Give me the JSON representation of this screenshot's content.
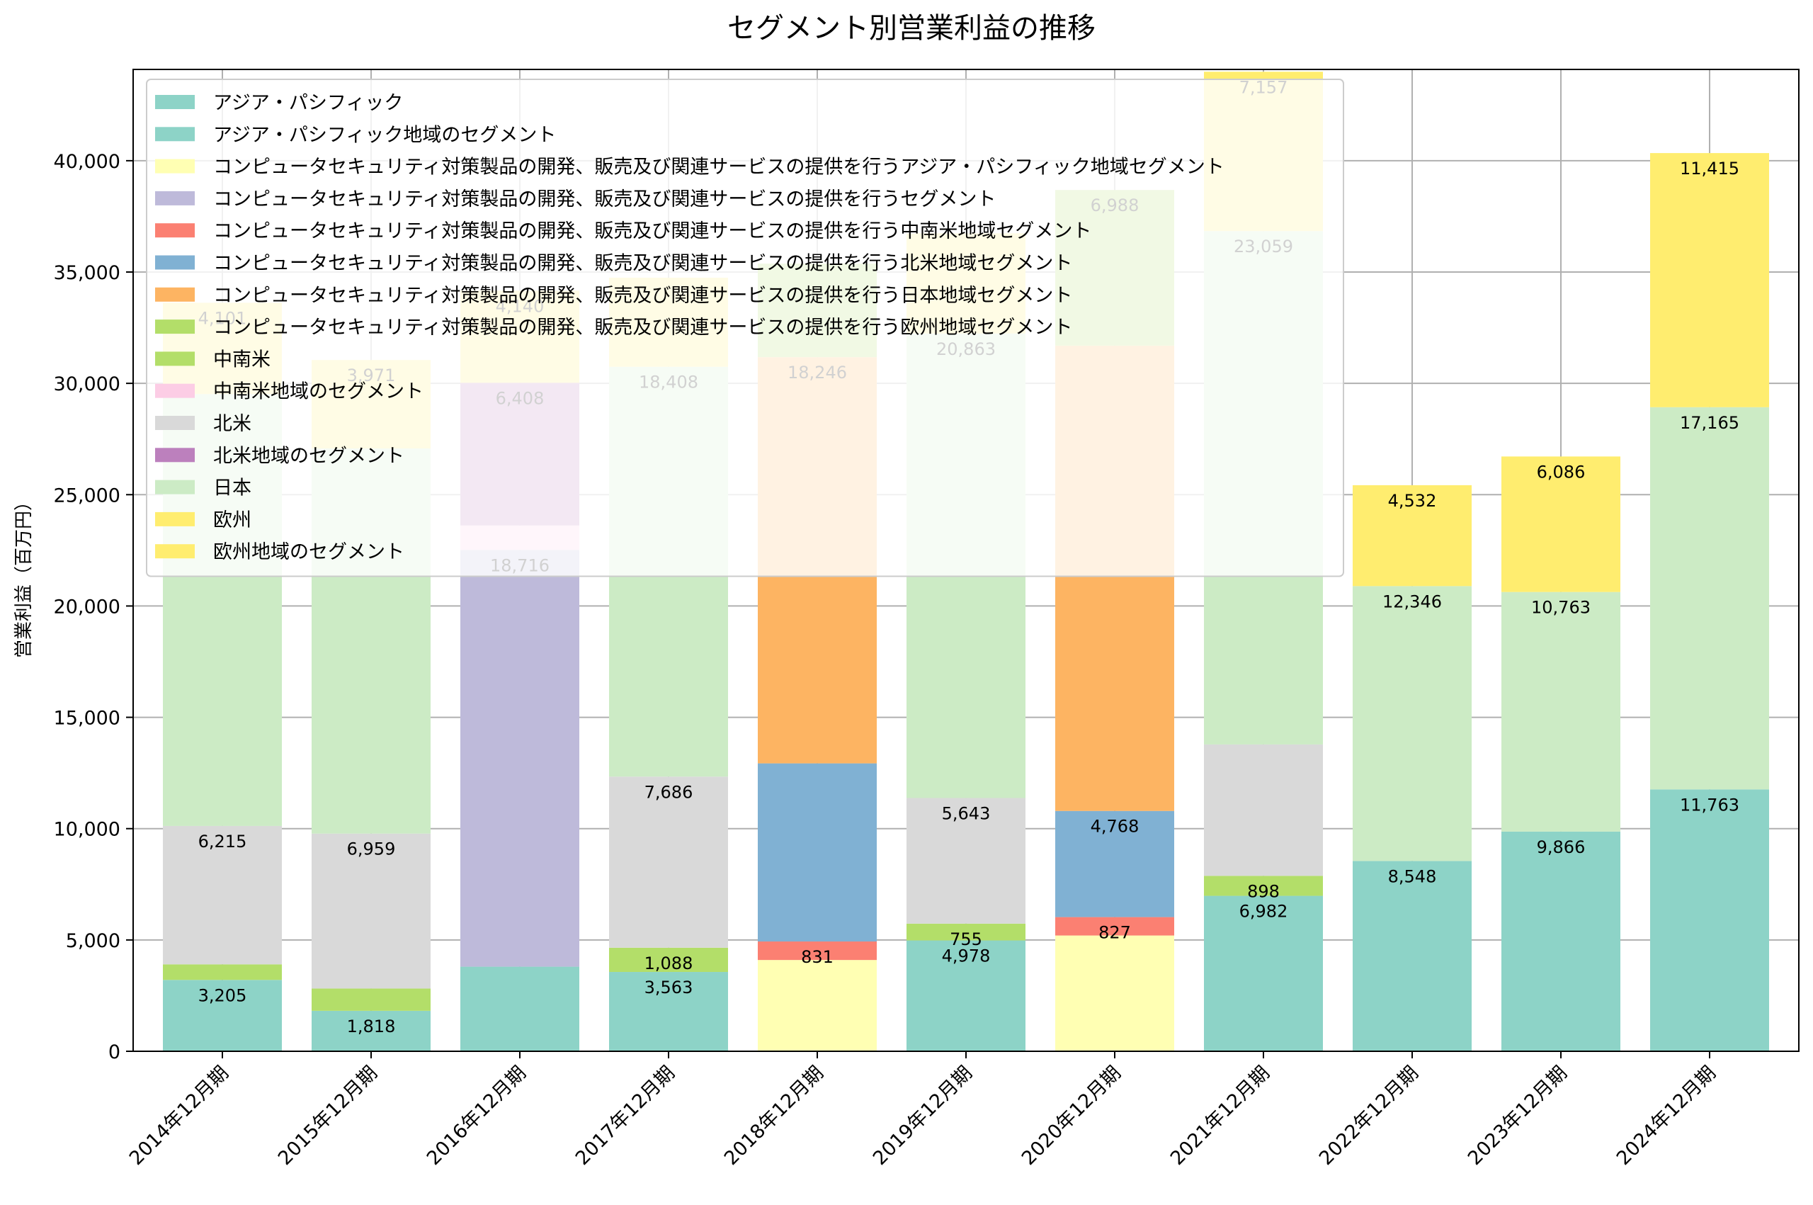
{
  "chart_data": {
    "type": "bar",
    "stacked": true,
    "title": "セグメント別営業利益の推移",
    "ylabel": "営業利益（百万円）",
    "xlabel": "",
    "ylim": [
      0,
      44100
    ],
    "yticks": [
      0,
      5000,
      10000,
      15000,
      20000,
      25000,
      30000,
      35000,
      40000
    ],
    "grid": true,
    "legend_position": "top-left",
    "categories": [
      "2014年12月期",
      "2015年12月期",
      "2016年12月期",
      "2017年12月期",
      "2018年12月期",
      "2019年12月期",
      "2020年12月期",
      "2021年12月期",
      "2022年12月期",
      "2023年12月期",
      "2024年12月期"
    ],
    "series": [
      {
        "name": "アジア・パシフィック",
        "color": "#8dd3c7",
        "values": [
          3205,
          1818,
          null,
          3563,
          null,
          4978,
          null,
          6982,
          8548,
          9866,
          11763
        ]
      },
      {
        "name": "アジア・パシフィック地域のセグメント",
        "color": "#8dd3c7",
        "values": [
          null,
          null,
          3800,
          null,
          null,
          null,
          null,
          null,
          null,
          null,
          null
        ]
      },
      {
        "name": "コンピュータセキュリティ対策製品の開発、販売及び関連サービスの提供を行うアジア・パシフィック地域セグメント",
        "color": "#ffffb3",
        "values": [
          null,
          null,
          null,
          null,
          4100,
          null,
          5200,
          null,
          null,
          null,
          null
        ]
      },
      {
        "name": "コンピュータセキュリティ対策製品の開発、販売及び関連サービスの提供を行うセグメント",
        "color": "#bebada",
        "values": [
          null,
          null,
          18716,
          null,
          null,
          null,
          null,
          null,
          null,
          null,
          null
        ]
      },
      {
        "name": "コンピュータセキュリティ対策製品の開発、販売及び関連サービスの提供を行う中南米地域セグメント",
        "color": "#fb8072",
        "values": [
          null,
          null,
          null,
          null,
          831,
          null,
          827,
          null,
          null,
          null,
          null
        ]
      },
      {
        "name": "コンピュータセキュリティ対策製品の開発、販売及び関連サービスの提供を行う北米地域セグメント",
        "color": "#80b1d3",
        "values": [
          null,
          null,
          null,
          null,
          8000,
          null,
          4768,
          null,
          null,
          null,
          null
        ]
      },
      {
        "name": "コンピュータセキュリティ対策製品の開発、販売及び関連サービスの提供を行う日本地域セグメント",
        "color": "#fdb462",
        "values": [
          null,
          null,
          null,
          null,
          18246,
          null,
          20900,
          null,
          null,
          null,
          null
        ]
      },
      {
        "name": "コンピュータセキュリティ対策製品の開発、販売及び関連サービスの提供を行う欧州地域セグメント",
        "color": "#b3de69",
        "values": [
          null,
          null,
          null,
          null,
          4200,
          null,
          6988,
          null,
          null,
          null,
          null
        ]
      },
      {
        "name": "中南米",
        "color": "#b3de69",
        "values": [
          700,
          1000,
          null,
          1088,
          null,
          755,
          null,
          898,
          null,
          null,
          null
        ]
      },
      {
        "name": "中南米地域のセグメント",
        "color": "#fccde5",
        "values": [
          null,
          null,
          1100,
          null,
          null,
          null,
          null,
          null,
          null,
          null,
          null
        ]
      },
      {
        "name": "北米",
        "color": "#d9d9d9",
        "values": [
          6215,
          6959,
          null,
          7686,
          null,
          5643,
          null,
          5900,
          null,
          null,
          null
        ]
      },
      {
        "name": "北米地域のセグメント",
        "color": "#bc80bd",
        "values": [
          null,
          null,
          6408,
          null,
          null,
          null,
          null,
          null,
          null,
          null,
          null
        ]
      },
      {
        "name": "日本",
        "color": "#ccebc5",
        "values": [
          19400,
          17300,
          null,
          18408,
          null,
          20863,
          null,
          23059,
          12346,
          10763,
          17165
        ]
      },
      {
        "name": "欧州",
        "color": "#ffed6f",
        "values": [
          4101,
          3971,
          null,
          4000,
          null,
          4500,
          null,
          7157,
          4532,
          6086,
          11415
        ]
      },
      {
        "name": "欧州地域のセグメント",
        "color": "#ffed6f",
        "values": [
          null,
          null,
          4140,
          null,
          null,
          null,
          null,
          null,
          null,
          null,
          null
        ]
      }
    ],
    "labels": [
      {
        "cat": 0,
        "series": 0,
        "text": "3,205"
      },
      {
        "cat": 0,
        "series": 10,
        "text": "6,215"
      },
      {
        "cat": 0,
        "series": 13,
        "text": "4,101"
      },
      {
        "cat": 1,
        "series": 0,
        "text": "1,818"
      },
      {
        "cat": 1,
        "series": 10,
        "text": "6,959"
      },
      {
        "cat": 1,
        "series": 13,
        "text": "3,971"
      },
      {
        "cat": 2,
        "series": 3,
        "text": "18,716"
      },
      {
        "cat": 2,
        "series": 11,
        "text": "6,408"
      },
      {
        "cat": 2,
        "series": 14,
        "text": "4,140"
      },
      {
        "cat": 3,
        "series": 0,
        "text": "3,563"
      },
      {
        "cat": 3,
        "series": 8,
        "text": "1,088"
      },
      {
        "cat": 3,
        "series": 10,
        "text": "7,686"
      },
      {
        "cat": 3,
        "series": 12,
        "text": "18,408"
      },
      {
        "cat": 4,
        "series": 4,
        "text": "831"
      },
      {
        "cat": 4,
        "series": 6,
        "text": "18,246"
      },
      {
        "cat": 5,
        "series": 0,
        "text": "4,978"
      },
      {
        "cat": 5,
        "series": 8,
        "text": "755"
      },
      {
        "cat": 5,
        "series": 10,
        "text": "5,643"
      },
      {
        "cat": 5,
        "series": 12,
        "text": "20,863"
      },
      {
        "cat": 6,
        "series": 4,
        "text": "827"
      },
      {
        "cat": 6,
        "series": 5,
        "text": "4,768"
      },
      {
        "cat": 6,
        "series": 7,
        "text": "6,988"
      },
      {
        "cat": 7,
        "series": 0,
        "text": "6,982"
      },
      {
        "cat": 7,
        "series": 8,
        "text": "898"
      },
      {
        "cat": 7,
        "series": 12,
        "text": "23,059"
      },
      {
        "cat": 7,
        "series": 13,
        "text": "7,157"
      },
      {
        "cat": 8,
        "series": 0,
        "text": "8,548"
      },
      {
        "cat": 8,
        "series": 12,
        "text": "12,346"
      },
      {
        "cat": 8,
        "series": 13,
        "text": "4,532"
      },
      {
        "cat": 9,
        "series": 0,
        "text": "9,866"
      },
      {
        "cat": 9,
        "series": 12,
        "text": "10,763"
      },
      {
        "cat": 9,
        "series": 13,
        "text": "6,086"
      },
      {
        "cat": 10,
        "series": 0,
        "text": "11,763"
      },
      {
        "cat": 10,
        "series": 12,
        "text": "17,165"
      },
      {
        "cat": 10,
        "series": 13,
        "text": "11,415"
      }
    ]
  }
}
